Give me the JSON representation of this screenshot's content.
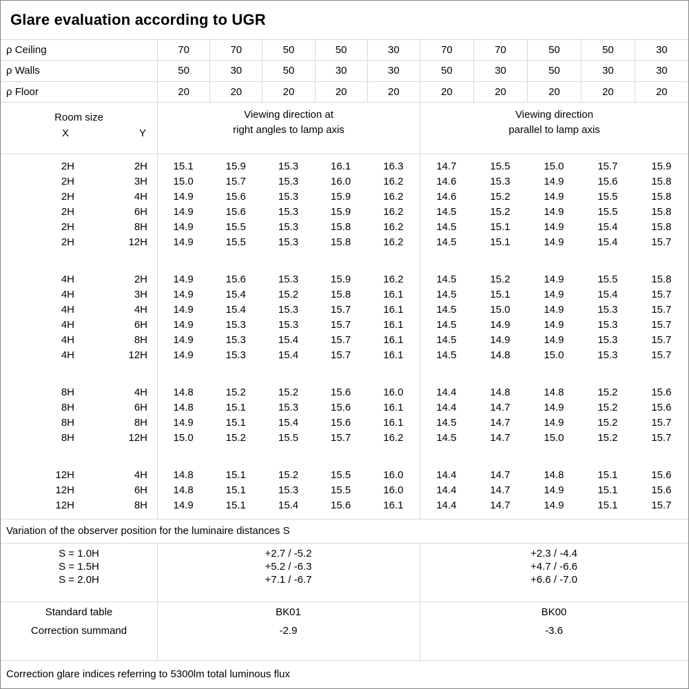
{
  "title": "Glare evaluation according to UGR",
  "colors": {
    "grid_line": "#d9d9d9",
    "outer_border": "#848484",
    "text": "#000000"
  },
  "reflectance_rows": [
    {
      "label": "ρ Ceiling",
      "values": [
        "70",
        "70",
        "50",
        "50",
        "30",
        "70",
        "70",
        "50",
        "50",
        "30"
      ]
    },
    {
      "label": "ρ Walls",
      "values": [
        "50",
        "30",
        "50",
        "30",
        "30",
        "50",
        "30",
        "50",
        "30",
        "30"
      ]
    },
    {
      "label": "ρ Floor",
      "values": [
        "20",
        "20",
        "20",
        "20",
        "20",
        "20",
        "20",
        "20",
        "20",
        "20"
      ]
    }
  ],
  "room_header": {
    "title": "Room size",
    "x_label": "X",
    "y_label": "Y",
    "crosswise_line1": "Viewing direction at",
    "crosswise_line2": "right angles to lamp axis",
    "parallel_line1": "Viewing direction",
    "parallel_line2": "parallel to lamp axis"
  },
  "ugr_groups": [
    {
      "rows": [
        {
          "x": "2H",
          "y": "2H",
          "crosswise": [
            "15.1",
            "15.9",
            "15.3",
            "16.1",
            "16.3"
          ],
          "parallel": [
            "14.7",
            "15.5",
            "15.0",
            "15.7",
            "15.9"
          ]
        },
        {
          "x": "2H",
          "y": "3H",
          "crosswise": [
            "15.0",
            "15.7",
            "15.3",
            "16.0",
            "16.2"
          ],
          "parallel": [
            "14.6",
            "15.3",
            "14.9",
            "15.6",
            "15.8"
          ]
        },
        {
          "x": "2H",
          "y": "4H",
          "crosswise": [
            "14.9",
            "15.6",
            "15.3",
            "15.9",
            "16.2"
          ],
          "parallel": [
            "14.6",
            "15.2",
            "14.9",
            "15.5",
            "15.8"
          ]
        },
        {
          "x": "2H",
          "y": "6H",
          "crosswise": [
            "14.9",
            "15.6",
            "15.3",
            "15.9",
            "16.2"
          ],
          "parallel": [
            "14.5",
            "15.2",
            "14.9",
            "15.5",
            "15.8"
          ]
        },
        {
          "x": "2H",
          "y": "8H",
          "crosswise": [
            "14.9",
            "15.5",
            "15.3",
            "15.8",
            "16.2"
          ],
          "parallel": [
            "14.5",
            "15.1",
            "14.9",
            "15.4",
            "15.8"
          ]
        },
        {
          "x": "2H",
          "y": "12H",
          "crosswise": [
            "14.9",
            "15.5",
            "15.3",
            "15.8",
            "16.2"
          ],
          "parallel": [
            "14.5",
            "15.1",
            "14.9",
            "15.4",
            "15.7"
          ]
        }
      ]
    },
    {
      "rows": [
        {
          "x": "4H",
          "y": "2H",
          "crosswise": [
            "14.9",
            "15.6",
            "15.3",
            "15.9",
            "16.2"
          ],
          "parallel": [
            "14.5",
            "15.2",
            "14.9",
            "15.5",
            "15.8"
          ]
        },
        {
          "x": "4H",
          "y": "3H",
          "crosswise": [
            "14.9",
            "15.4",
            "15.2",
            "15.8",
            "16.1"
          ],
          "parallel": [
            "14.5",
            "15.1",
            "14.9",
            "15.4",
            "15.7"
          ]
        },
        {
          "x": "4H",
          "y": "4H",
          "crosswise": [
            "14.9",
            "15.4",
            "15.3",
            "15.7",
            "16.1"
          ],
          "parallel": [
            "14.5",
            "15.0",
            "14.9",
            "15.3",
            "15.7"
          ]
        },
        {
          "x": "4H",
          "y": "6H",
          "crosswise": [
            "14.9",
            "15.3",
            "15.3",
            "15.7",
            "16.1"
          ],
          "parallel": [
            "14.5",
            "14.9",
            "14.9",
            "15.3",
            "15.7"
          ]
        },
        {
          "x": "4H",
          "y": "8H",
          "crosswise": [
            "14.9",
            "15.3",
            "15.4",
            "15.7",
            "16.1"
          ],
          "parallel": [
            "14.5",
            "14.9",
            "14.9",
            "15.3",
            "15.7"
          ]
        },
        {
          "x": "4H",
          "y": "12H",
          "crosswise": [
            "14.9",
            "15.3",
            "15.4",
            "15.7",
            "16.1"
          ],
          "parallel": [
            "14.5",
            "14.8",
            "15.0",
            "15.3",
            "15.7"
          ]
        }
      ]
    },
    {
      "rows": [
        {
          "x": "8H",
          "y": "4H",
          "crosswise": [
            "14.8",
            "15.2",
            "15.2",
            "15.6",
            "16.0"
          ],
          "parallel": [
            "14.4",
            "14.8",
            "14.8",
            "15.2",
            "15.6"
          ]
        },
        {
          "x": "8H",
          "y": "6H",
          "crosswise": [
            "14.8",
            "15.1",
            "15.3",
            "15.6",
            "16.1"
          ],
          "parallel": [
            "14.4",
            "14.7",
            "14.9",
            "15.2",
            "15.6"
          ]
        },
        {
          "x": "8H",
          "y": "8H",
          "crosswise": [
            "14.9",
            "15.1",
            "15.4",
            "15.6",
            "16.1"
          ],
          "parallel": [
            "14.5",
            "14.7",
            "14.9",
            "15.2",
            "15.7"
          ]
        },
        {
          "x": "8H",
          "y": "12H",
          "crosswise": [
            "15.0",
            "15.2",
            "15.5",
            "15.7",
            "16.2"
          ],
          "parallel": [
            "14.5",
            "14.7",
            "15.0",
            "15.2",
            "15.7"
          ]
        }
      ]
    },
    {
      "rows": [
        {
          "x": "12H",
          "y": "4H",
          "crosswise": [
            "14.8",
            "15.1",
            "15.2",
            "15.5",
            "16.0"
          ],
          "parallel": [
            "14.4",
            "14.7",
            "14.8",
            "15.1",
            "15.6"
          ]
        },
        {
          "x": "12H",
          "y": "6H",
          "crosswise": [
            "14.8",
            "15.1",
            "15.3",
            "15.5",
            "16.0"
          ],
          "parallel": [
            "14.4",
            "14.7",
            "14.9",
            "15.1",
            "15.6"
          ]
        },
        {
          "x": "12H",
          "y": "8H",
          "crosswise": [
            "14.9",
            "15.1",
            "15.4",
            "15.6",
            "16.1"
          ],
          "parallel": [
            "14.4",
            "14.7",
            "14.9",
            "15.1",
            "15.7"
          ]
        }
      ]
    }
  ],
  "variation_note": "Variation of the observer position for the luminaire distances S",
  "spacing_rows": [
    {
      "label": "S = 1.0H",
      "crosswise": "+2.7 / -5.2",
      "parallel": "+2.3 / -4.4"
    },
    {
      "label": "S = 1.5H",
      "crosswise": "+5.2 / -6.3",
      "parallel": "+4.7 / -6.6"
    },
    {
      "label": "S = 2.0H",
      "crosswise": "+7.1 / -6.7",
      "parallel": "+6.6 / -7.0"
    }
  ],
  "standard": {
    "row1_label": "Standard table",
    "row2_label": "Correction summand",
    "crosswise_table": "BK01",
    "crosswise_summand": "-2.9",
    "parallel_table": "BK00",
    "parallel_summand": "-3.6"
  },
  "footer_note": "Correction glare indices referring to 5300lm total luminous flux"
}
